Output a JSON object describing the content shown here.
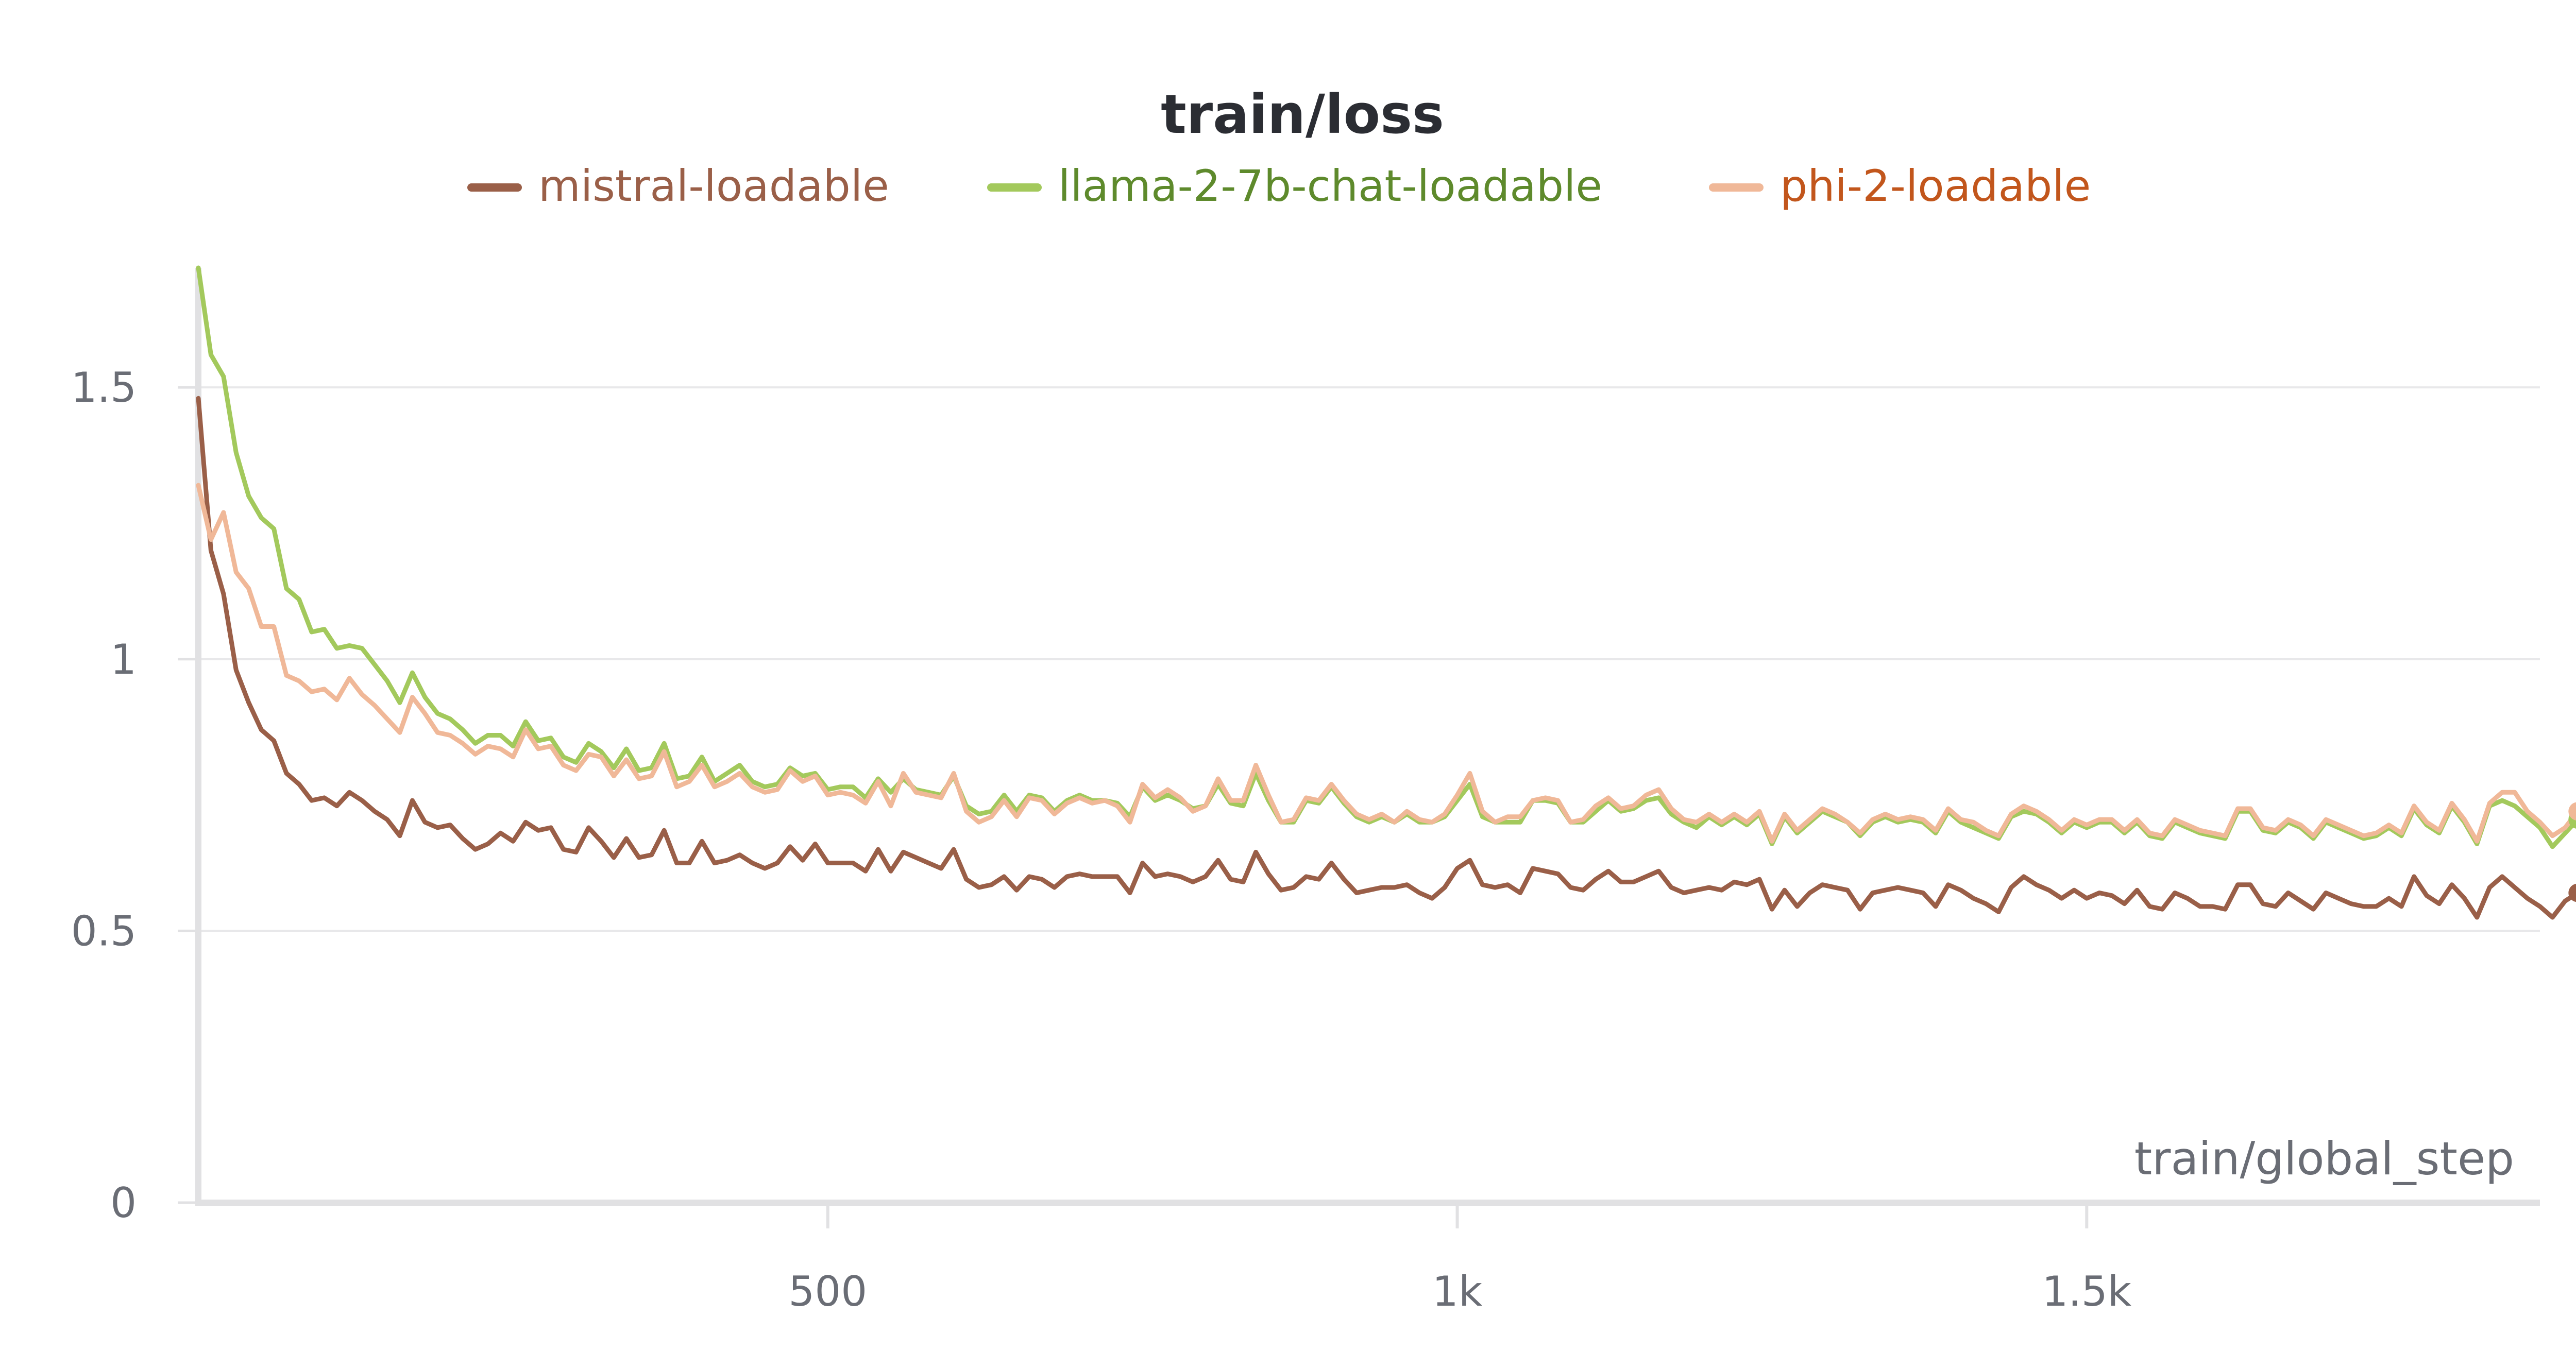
{
  "chart_data": {
    "type": "line",
    "title": "train/loss",
    "xlabel": "train/global_step",
    "ylabel": "",
    "xlim": [
      0,
      1860
    ],
    "ylim": [
      0,
      1.72
    ],
    "x_ticks": [
      500,
      1000,
      1500
    ],
    "x_tick_labels": [
      "500",
      "1k",
      "1.5k"
    ],
    "y_ticks": [
      0,
      0.5,
      1,
      1.5
    ],
    "y_tick_labels": [
      "0",
      "0.5",
      "1",
      "1.5"
    ],
    "grid": true,
    "legend_position": "top-center",
    "x_step": 10,
    "series": [
      {
        "name": "mistral-loadable",
        "color": "#9a5f48",
        "text_color": "#9a5f48",
        "values": [
          1.48,
          1.2,
          1.12,
          0.98,
          0.92,
          0.87,
          0.85,
          0.79,
          0.77,
          0.74,
          0.745,
          0.73,
          0.755,
          0.74,
          0.72,
          0.705,
          0.675,
          0.74,
          0.7,
          0.69,
          0.695,
          0.67,
          0.65,
          0.66,
          0.68,
          0.665,
          0.7,
          0.685,
          0.69,
          0.65,
          0.645,
          0.69,
          0.665,
          0.635,
          0.67,
          0.635,
          0.64,
          0.685,
          0.625,
          0.625,
          0.665,
          0.625,
          0.63,
          0.64,
          0.625,
          0.615,
          0.625,
          0.655,
          0.63,
          0.66,
          0.625,
          0.625,
          0.625,
          0.61,
          0.65,
          0.61,
          0.645,
          0.635,
          0.625,
          0.615,
          0.65,
          0.595,
          0.58,
          0.585,
          0.6,
          0.575,
          0.6,
          0.595,
          0.58,
          0.6,
          0.605,
          0.6,
          0.6,
          0.6,
          0.57,
          0.625,
          0.6,
          0.605,
          0.6,
          0.59,
          0.6,
          0.63,
          0.595,
          0.59,
          0.645,
          0.605,
          0.575,
          0.58,
          0.6,
          0.595,
          0.625,
          0.595,
          0.57,
          0.575,
          0.58,
          0.58,
          0.585,
          0.57,
          0.56,
          0.58,
          0.615,
          0.63,
          0.585,
          0.58,
          0.585,
          0.57,
          0.615,
          0.61,
          0.605,
          0.58,
          0.575,
          0.595,
          0.61,
          0.59,
          0.59,
          0.6,
          0.61,
          0.58,
          0.57,
          0.575,
          0.58,
          0.575,
          0.59,
          0.585,
          0.595,
          0.54,
          0.575,
          0.545,
          0.57,
          0.585,
          0.58,
          0.575,
          0.54,
          0.57,
          0.575,
          0.58,
          0.575,
          0.57,
          0.545,
          0.585,
          0.575,
          0.56,
          0.55,
          0.535,
          0.58,
          0.6,
          0.585,
          0.575,
          0.56,
          0.575,
          0.56,
          0.57,
          0.565,
          0.55,
          0.575,
          0.545,
          0.54,
          0.57,
          0.56,
          0.545,
          0.545,
          0.54,
          0.585,
          0.585,
          0.55,
          0.545,
          0.57,
          0.555,
          0.54,
          0.57,
          0.56,
          0.55,
          0.545,
          0.545,
          0.56,
          0.545,
          0.6,
          0.565,
          0.55,
          0.585,
          0.56,
          0.525,
          0.58,
          0.6,
          0.58,
          0.56,
          0.545,
          0.525,
          0.555,
          0.57
        ]
      },
      {
        "name": "llama-2-7b-chat-loadable",
        "color": "#a3c95c",
        "text_color": "#5e8a2c",
        "values": [
          1.72,
          1.56,
          1.52,
          1.38,
          1.3,
          1.26,
          1.24,
          1.13,
          1.11,
          1.05,
          1.055,
          1.02,
          1.025,
          1.02,
          0.99,
          0.96,
          0.92,
          0.975,
          0.93,
          0.9,
          0.89,
          0.87,
          0.845,
          0.86,
          0.86,
          0.84,
          0.885,
          0.85,
          0.855,
          0.82,
          0.81,
          0.845,
          0.83,
          0.8,
          0.835,
          0.795,
          0.8,
          0.845,
          0.78,
          0.785,
          0.82,
          0.775,
          0.79,
          0.805,
          0.775,
          0.765,
          0.77,
          0.8,
          0.785,
          0.79,
          0.76,
          0.765,
          0.765,
          0.745,
          0.78,
          0.755,
          0.78,
          0.76,
          0.755,
          0.75,
          0.785,
          0.73,
          0.715,
          0.72,
          0.75,
          0.72,
          0.75,
          0.745,
          0.72,
          0.74,
          0.75,
          0.74,
          0.74,
          0.735,
          0.71,
          0.765,
          0.74,
          0.75,
          0.74,
          0.725,
          0.73,
          0.77,
          0.735,
          0.73,
          0.79,
          0.74,
          0.7,
          0.7,
          0.74,
          0.735,
          0.765,
          0.735,
          0.71,
          0.7,
          0.71,
          0.7,
          0.715,
          0.7,
          0.7,
          0.71,
          0.74,
          0.77,
          0.71,
          0.7,
          0.7,
          0.7,
          0.74,
          0.74,
          0.735,
          0.7,
          0.7,
          0.72,
          0.74,
          0.72,
          0.725,
          0.74,
          0.745,
          0.715,
          0.7,
          0.69,
          0.71,
          0.695,
          0.71,
          0.695,
          0.715,
          0.66,
          0.71,
          0.68,
          0.7,
          0.72,
          0.71,
          0.7,
          0.675,
          0.7,
          0.71,
          0.7,
          0.705,
          0.7,
          0.68,
          0.72,
          0.7,
          0.69,
          0.68,
          0.67,
          0.71,
          0.72,
          0.715,
          0.7,
          0.68,
          0.7,
          0.69,
          0.7,
          0.7,
          0.68,
          0.7,
          0.675,
          0.67,
          0.7,
          0.69,
          0.68,
          0.675,
          0.67,
          0.72,
          0.72,
          0.685,
          0.68,
          0.7,
          0.69,
          0.67,
          0.7,
          0.69,
          0.68,
          0.67,
          0.675,
          0.69,
          0.675,
          0.725,
          0.695,
          0.68,
          0.73,
          0.7,
          0.66,
          0.73,
          0.74,
          0.73,
          0.71,
          0.69,
          0.655,
          0.68,
          0.705
        ]
      },
      {
        "name": "phi-2-loadable",
        "color": "#f0b898",
        "text_color": "#c2561c",
        "values": [
          1.32,
          1.22,
          1.27,
          1.16,
          1.13,
          1.06,
          1.06,
          0.97,
          0.96,
          0.94,
          0.945,
          0.925,
          0.965,
          0.935,
          0.915,
          0.89,
          0.865,
          0.93,
          0.9,
          0.865,
          0.86,
          0.845,
          0.825,
          0.84,
          0.835,
          0.82,
          0.87,
          0.835,
          0.84,
          0.805,
          0.795,
          0.825,
          0.82,
          0.785,
          0.815,
          0.78,
          0.785,
          0.83,
          0.765,
          0.775,
          0.805,
          0.765,
          0.775,
          0.79,
          0.765,
          0.755,
          0.76,
          0.795,
          0.775,
          0.785,
          0.75,
          0.755,
          0.75,
          0.735,
          0.775,
          0.73,
          0.79,
          0.755,
          0.75,
          0.745,
          0.79,
          0.72,
          0.7,
          0.71,
          0.74,
          0.71,
          0.745,
          0.74,
          0.715,
          0.735,
          0.745,
          0.735,
          0.74,
          0.73,
          0.7,
          0.77,
          0.745,
          0.76,
          0.745,
          0.72,
          0.73,
          0.78,
          0.74,
          0.74,
          0.805,
          0.75,
          0.7,
          0.705,
          0.745,
          0.74,
          0.77,
          0.74,
          0.715,
          0.705,
          0.715,
          0.7,
          0.72,
          0.705,
          0.7,
          0.715,
          0.75,
          0.79,
          0.72,
          0.7,
          0.71,
          0.71,
          0.74,
          0.745,
          0.74,
          0.7,
          0.705,
          0.73,
          0.745,
          0.725,
          0.73,
          0.75,
          0.76,
          0.725,
          0.705,
          0.7,
          0.715,
          0.7,
          0.715,
          0.7,
          0.72,
          0.665,
          0.715,
          0.685,
          0.705,
          0.725,
          0.715,
          0.7,
          0.68,
          0.705,
          0.715,
          0.705,
          0.71,
          0.705,
          0.685,
          0.725,
          0.705,
          0.7,
          0.685,
          0.675,
          0.715,
          0.73,
          0.72,
          0.705,
          0.685,
          0.705,
          0.695,
          0.705,
          0.705,
          0.685,
          0.705,
          0.68,
          0.675,
          0.705,
          0.695,
          0.685,
          0.68,
          0.675,
          0.725,
          0.725,
          0.69,
          0.685,
          0.705,
          0.695,
          0.675,
          0.705,
          0.695,
          0.685,
          0.675,
          0.68,
          0.695,
          0.68,
          0.73,
          0.7,
          0.685,
          0.735,
          0.705,
          0.665,
          0.735,
          0.755,
          0.755,
          0.72,
          0.7,
          0.675,
          0.69,
          0.72
        ]
      }
    ]
  }
}
